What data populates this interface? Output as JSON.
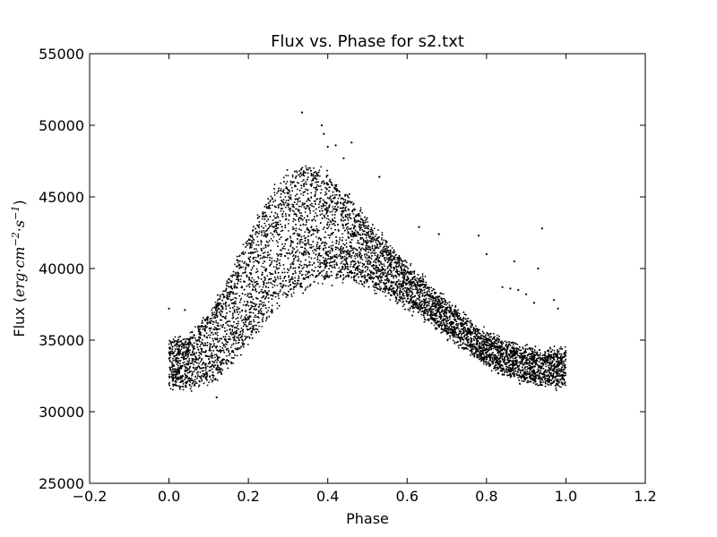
{
  "chart_data": {
    "type": "scatter",
    "title": "Flux vs. Phase for s2.txt",
    "xlabel": "Phase",
    "ylabel": {
      "prefix": "Flux (",
      "unit_1": "erg",
      "dot_1": "·",
      "unit_2": "cm",
      "exp_1": "−2",
      "dot_2": "·",
      "unit_3": "s",
      "exp_2": "−1",
      "suffix": ")"
    },
    "xlim": [
      -0.2,
      1.2
    ],
    "ylim": [
      25000,
      55000
    ],
    "x_ticks": [
      {
        "value": -0.2,
        "label": "−0.2"
      },
      {
        "value": 0.0,
        "label": "0.0"
      },
      {
        "value": 0.2,
        "label": "0.2"
      },
      {
        "value": 0.4,
        "label": "0.4"
      },
      {
        "value": 0.6,
        "label": "0.6"
      },
      {
        "value": 0.8,
        "label": "0.8"
      },
      {
        "value": 1.0,
        "label": "1.0"
      },
      {
        "value": 1.2,
        "label": "1.2"
      }
    ],
    "y_ticks": [
      {
        "value": 25000,
        "label": "25000"
      },
      {
        "value": 30000,
        "label": "30000"
      },
      {
        "value": 35000,
        "label": "35000"
      },
      {
        "value": 40000,
        "label": "40000"
      },
      {
        "value": 45000,
        "label": "45000"
      },
      {
        "value": 50000,
        "label": "50000"
      },
      {
        "value": 55000,
        "label": "55000"
      }
    ],
    "grid": false,
    "legend": "none",
    "marker_color": "#000000",
    "series": [
      {
        "x": [
          0.0,
          0.05,
          0.1,
          0.15,
          0.2,
          0.25,
          0.3,
          0.35,
          0.4,
          0.45,
          0.5,
          0.55,
          0.6,
          0.65,
          0.7,
          0.75,
          0.8,
          0.85,
          0.9,
          0.95,
          1.0
        ],
        "y_upper": [
          35000,
          35200,
          36800,
          39200,
          42200,
          44800,
          46600,
          47200,
          46500,
          45000,
          43300,
          41700,
          40200,
          38900,
          37600,
          36400,
          35300,
          34700,
          34300,
          34200,
          34200
        ],
        "y_lower": [
          31800,
          31800,
          32000,
          33000,
          34800,
          36600,
          38100,
          39000,
          39400,
          39300,
          38900,
          38300,
          37500,
          36600,
          35500,
          34400,
          33400,
          32700,
          32200,
          32000,
          31900
        ],
        "n_points": 9000
      }
    ],
    "outliers": [
      {
        "x": 0.335,
        "y": 50900
      },
      {
        "x": 0.385,
        "y": 50000
      },
      {
        "x": 0.39,
        "y": 49400
      },
      {
        "x": 0.42,
        "y": 48600
      },
      {
        "x": 0.4,
        "y": 48500
      },
      {
        "x": 0.46,
        "y": 48800
      },
      {
        "x": 0.44,
        "y": 47700
      },
      {
        "x": 0.53,
        "y": 46400
      },
      {
        "x": 0.63,
        "y": 42900
      },
      {
        "x": 0.68,
        "y": 42400
      },
      {
        "x": 0.78,
        "y": 42300
      },
      {
        "x": 0.8,
        "y": 41000
      },
      {
        "x": 0.87,
        "y": 40500
      },
      {
        "x": 0.93,
        "y": 40000
      },
      {
        "x": 0.94,
        "y": 42800
      },
      {
        "x": 0.84,
        "y": 38700
      },
      {
        "x": 0.86,
        "y": 38600
      },
      {
        "x": 0.88,
        "y": 38500
      },
      {
        "x": 0.9,
        "y": 38200
      },
      {
        "x": 0.92,
        "y": 37600
      },
      {
        "x": 0.97,
        "y": 37800
      },
      {
        "x": 0.98,
        "y": 37200
      },
      {
        "x": 0.0,
        "y": 37200
      },
      {
        "x": 0.04,
        "y": 37100
      },
      {
        "x": 0.12,
        "y": 31000
      }
    ]
  }
}
